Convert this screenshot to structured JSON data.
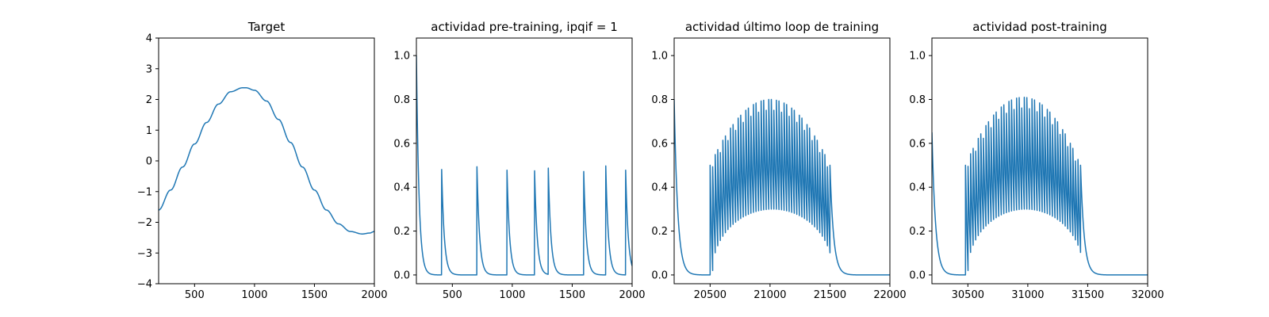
{
  "chart_data": [
    {
      "type": "line",
      "title": "Target",
      "xlim": [
        200,
        2000
      ],
      "ylim": [
        -4,
        4
      ],
      "xticks": [
        500,
        1000,
        1500,
        2000
      ],
      "yticks": [
        -4,
        -3,
        -2,
        -1,
        0,
        1,
        2,
        3,
        4
      ],
      "ytick_labels": [
        "−4",
        "−3",
        "−2",
        "−1",
        "0",
        "1",
        "2",
        "3",
        "4"
      ],
      "grid": false,
      "color": "#1f77b4",
      "series": [
        {
          "x": [
            200,
            300,
            400,
            500,
            600,
            700,
            800,
            900,
            930,
            1000,
            1100,
            1200,
            1300,
            1400,
            1500,
            1600,
            1700,
            1800,
            1900,
            1960,
            2000
          ],
          "y": [
            -1.6,
            -0.95,
            -0.2,
            0.55,
            1.25,
            1.85,
            2.25,
            2.38,
            2.38,
            2.3,
            1.95,
            1.35,
            0.6,
            -0.2,
            -0.95,
            -1.6,
            -2.05,
            -2.3,
            -2.38,
            -2.35,
            -2.3
          ]
        }
      ]
    },
    {
      "type": "line",
      "title": "actividad pre-training, ipqif = 1",
      "xlim": [
        200,
        2000
      ],
      "ylim": [
        -0.04,
        1.08
      ],
      "xticks": [
        500,
        1000,
        1500,
        2000
      ],
      "yticks": [
        0.0,
        0.2,
        0.4,
        0.6,
        0.8,
        1.0
      ],
      "ytick_labels": [
        "0.0",
        "0.2",
        "0.4",
        "0.6",
        "0.8",
        "1.0"
      ],
      "grid": false,
      "color": "#1f77b4",
      "series": [
        {
          "initial_value": 1.0,
          "spike_times": [
            410,
            705,
            955,
            1185,
            1300,
            1595,
            1780,
            1945
          ],
          "spike_peaks": [
            0.5,
            0.5,
            0.5,
            0.5,
            0.5,
            0.5,
            0.5,
            0.5
          ]
        }
      ]
    },
    {
      "type": "line",
      "title": "actividad último loop de training",
      "xlim": [
        20200,
        22000
      ],
      "ylim": [
        -0.04,
        1.08
      ],
      "xticks": [
        20500,
        21000,
        21500,
        22000
      ],
      "yticks": [
        0.0,
        0.2,
        0.4,
        0.6,
        0.8,
        1.0
      ],
      "ytick_labels": [
        "0.0",
        "0.2",
        "0.4",
        "0.6",
        "0.8",
        "1.0"
      ],
      "grid": false,
      "color": "#1f77b4",
      "series": [
        {
          "initial_value": 0.8,
          "burst_start": 20500,
          "burst_end": 21500,
          "burst_peak_max": 0.8,
          "burst_peak_edge": 0.5,
          "burst_trough_max": 0.3,
          "burst_spike_count": 48
        }
      ]
    },
    {
      "type": "line",
      "title": "actividad post-training",
      "xlim": [
        30200,
        32000
      ],
      "ylim": [
        -0.04,
        1.08
      ],
      "xticks": [
        30500,
        31000,
        31500,
        32000
      ],
      "yticks": [
        0.0,
        0.2,
        0.4,
        0.6,
        0.8,
        1.0
      ],
      "ytick_labels": [
        "0.0",
        "0.2",
        "0.4",
        "0.6",
        "0.8",
        "1.0"
      ],
      "grid": false,
      "color": "#1f77b4",
      "series": [
        {
          "initial_value": 0.65,
          "burst_start": 30480,
          "burst_end": 31440,
          "burst_peak_max": 0.81,
          "burst_peak_edge": 0.5,
          "burst_trough_max": 0.3,
          "burst_spike_count": 46
        }
      ]
    }
  ]
}
